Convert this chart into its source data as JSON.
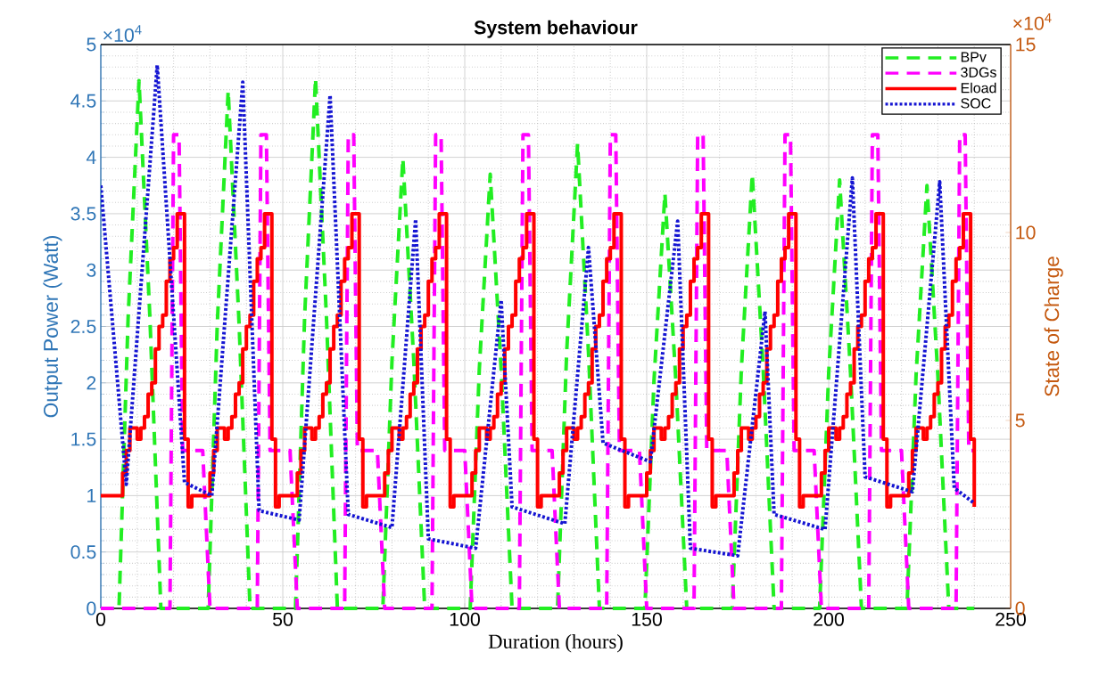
{
  "chart_data": {
    "type": "line",
    "title": "System behaviour",
    "xlabel": "Duration (hours)",
    "ylabel": "Output Power (Watt)",
    "y2label": "State of Charge",
    "annotations": [
      "×10$^{4}$",
      "×10$^{4}$"
    ],
    "xlim": [
      0,
      250
    ],
    "xticks": [
      0,
      50,
      100,
      150,
      200,
      250
    ],
    "ylim": [
      0,
      5
    ],
    "yticks": [
      0,
      0.5,
      1,
      1.5,
      2,
      2.5,
      3,
      3.5,
      4,
      4.5,
      5
    ],
    "y2lim": [
      0,
      15
    ],
    "y2ticks": [
      0,
      5,
      10,
      15
    ],
    "grid": true,
    "legend": "top right",
    "series": [
      {
        "name": "BPv",
        "type": "line",
        "line_style": "dashed",
        "color": "#22ee22",
        "x": [
          0,
          5,
          7.5,
          10.5,
          13.5,
          16.5,
          29.5,
          32,
          35,
          38,
          41,
          53.5,
          56,
          59,
          62,
          65,
          77.5,
          80,
          83,
          86,
          89,
          101.5,
          104,
          107,
          110,
          113,
          125.5,
          128,
          131,
          134,
          137,
          149.5,
          152,
          155,
          158,
          161,
          173.5,
          176,
          179,
          182,
          185,
          197.5,
          200,
          203,
          206,
          209,
          221.5,
          224,
          227,
          230,
          233,
          240
        ],
        "values": [
          0,
          0,
          2.57,
          4.68,
          2.57,
          0,
          0,
          2.52,
          4.59,
          2.52,
          0,
          0,
          2.58,
          4.7,
          2.58,
          0,
          0,
          2.19,
          3.99,
          2.19,
          0,
          0,
          2.12,
          3.85,
          2.12,
          0,
          0,
          2.27,
          4.12,
          2.27,
          0,
          0,
          2.02,
          3.68,
          2.02,
          0,
          0,
          2.12,
          3.85,
          2.12,
          0,
          0,
          2.09,
          3.8,
          2.09,
          0,
          0,
          2.06,
          3.75,
          2.06,
          0,
          0
        ]
      },
      {
        "name": "3DGs",
        "type": "line",
        "line_style": "dashed",
        "color": "#ff00ff",
        "x": [
          0,
          19,
          20,
          21.5,
          22.5,
          28,
          30,
          43,
          44,
          45.5,
          46.5,
          52,
          54,
          67,
          68,
          69.5,
          70.5,
          76,
          78,
          91,
          92,
          93.5,
          94.5,
          100,
          102,
          115,
          116,
          117.5,
          118.5,
          124,
          126,
          139,
          140,
          141.5,
          142.5,
          148,
          150,
          163,
          164,
          165.5,
          166.5,
          172,
          174,
          187,
          188,
          189.5,
          190.5,
          196,
          198,
          211,
          212,
          213.5,
          214.5,
          220,
          222,
          235,
          236,
          237.5,
          238.5,
          240
        ],
        "values": [
          0,
          0,
          4.2,
          4.2,
          1.4,
          1.4,
          0,
          0,
          4.2,
          4.2,
          1.4,
          1.4,
          0,
          0,
          4.2,
          4.2,
          1.4,
          1.4,
          0,
          0,
          4.2,
          4.2,
          1.4,
          1.4,
          0,
          0,
          4.2,
          4.2,
          1.4,
          1.4,
          0,
          0,
          4.2,
          4.2,
          1.4,
          1.4,
          0,
          0,
          4.2,
          4.2,
          1.4,
          1.4,
          0,
          0,
          4.2,
          4.2,
          1.4,
          1.4,
          0,
          0,
          4.2,
          4.2,
          1.4,
          1.4,
          0,
          0,
          4.2,
          4.2,
          1.4,
          1.4
        ]
      },
      {
        "name": "Eload",
        "type": "step",
        "line_style": "solid",
        "color": "#ff0000",
        "x": [
          0,
          6,
          7,
          8,
          10,
          11,
          12,
          13,
          14,
          15,
          16,
          17,
          18,
          19,
          20,
          21,
          23,
          24,
          25,
          30,
          31,
          32,
          34,
          35,
          36,
          37,
          38,
          39,
          40,
          41,
          42,
          43,
          44,
          45,
          47,
          48,
          49,
          54,
          55,
          56,
          58,
          59,
          60,
          61,
          62,
          63,
          64,
          65,
          66,
          67,
          68,
          69,
          71,
          72,
          73,
          78,
          79,
          80,
          82,
          83,
          84,
          85,
          86,
          87,
          88,
          89,
          90,
          91,
          92,
          93,
          95,
          96,
          97,
          102,
          103,
          104,
          106,
          107,
          108,
          109,
          110,
          111,
          112,
          113,
          114,
          115,
          116,
          117,
          119,
          120,
          121,
          126,
          127,
          128,
          130,
          131,
          132,
          133,
          134,
          135,
          136,
          137,
          138,
          139,
          140,
          141,
          143,
          144,
          145,
          150,
          151,
          152,
          154,
          155,
          156,
          157,
          158,
          159,
          160,
          161,
          162,
          163,
          164,
          165,
          167,
          168,
          169,
          174,
          175,
          176,
          178,
          179,
          180,
          181,
          182,
          183,
          184,
          185,
          186,
          187,
          188,
          189,
          191,
          192,
          193,
          198,
          199,
          200,
          202,
          203,
          204,
          205,
          206,
          207,
          208,
          209,
          210,
          211,
          212,
          213,
          215,
          216,
          217,
          222,
          223,
          224,
          226,
          227,
          228,
          229,
          230,
          231,
          232,
          233,
          234,
          235,
          236,
          237,
          239,
          240
        ],
        "values": [
          1,
          1.2,
          1.4,
          1.6,
          1.5,
          1.6,
          1.7,
          1.9,
          2,
          2.3,
          2.5,
          2.6,
          2.9,
          3.1,
          3.2,
          3.5,
          1.5,
          0.9,
          1,
          1.2,
          1.4,
          1.6,
          1.5,
          1.6,
          1.7,
          1.9,
          2,
          2.3,
          2.5,
          2.6,
          2.9,
          3.1,
          3.2,
          3.5,
          1.5,
          0.9,
          1,
          1.2,
          1.4,
          1.6,
          1.5,
          1.6,
          1.7,
          1.9,
          2,
          2.3,
          2.5,
          2.6,
          2.9,
          3.1,
          3.2,
          3.5,
          1.5,
          0.9,
          1,
          1.2,
          1.4,
          1.6,
          1.5,
          1.6,
          1.7,
          1.9,
          2,
          2.3,
          2.5,
          2.6,
          2.9,
          3.1,
          3.2,
          3.5,
          1.5,
          0.9,
          1,
          1.2,
          1.4,
          1.6,
          1.5,
          1.6,
          1.7,
          1.9,
          2,
          2.3,
          2.5,
          2.6,
          2.9,
          3.1,
          3.2,
          3.5,
          1.5,
          0.9,
          1,
          1.2,
          1.4,
          1.6,
          1.5,
          1.6,
          1.7,
          1.9,
          2,
          2.3,
          2.5,
          2.6,
          2.9,
          3.1,
          3.2,
          3.5,
          1.5,
          0.9,
          1,
          1.2,
          1.4,
          1.6,
          1.5,
          1.6,
          1.7,
          1.9,
          2,
          2.3,
          2.5,
          2.6,
          2.9,
          3.1,
          3.2,
          3.5,
          1.5,
          0.9,
          1,
          1.2,
          1.4,
          1.6,
          1.5,
          1.6,
          1.7,
          1.9,
          2,
          2.3,
          2.5,
          2.6,
          2.9,
          3.1,
          3.2,
          3.5,
          1.5,
          0.9,
          1,
          1.2,
          1.4,
          1.6,
          1.5,
          1.6,
          1.7,
          1.9,
          2,
          2.3,
          2.5,
          2.6,
          2.9,
          3.1,
          3.2,
          3.5,
          1.5,
          0.9,
          1,
          1.2,
          1.4,
          1.6,
          1.5,
          1.6,
          1.7,
          1.9,
          2,
          2.3,
          2.5,
          2.6,
          2.9,
          3.1,
          3.2,
          3.5,
          1.5,
          0.9
        ]
      },
      {
        "name": "SOC",
        "type": "line",
        "line_style": "dotted",
        "axis": "y2",
        "color": "#1414d2",
        "x": [
          0,
          7,
          15.5,
          23,
          30.5,
          39,
          43.5,
          54.5,
          63,
          68,
          80,
          86.5,
          90,
          103,
          110,
          113,
          127.5,
          134,
          138,
          151,
          158.5,
          162,
          175,
          182.5,
          185,
          199,
          206.5,
          210,
          223,
          230.5,
          234.5,
          240
        ],
        "values": [
          11.25,
          3.3,
          14.45,
          3.35,
          3,
          14,
          2.6,
          2.35,
          13.65,
          2.5,
          2.15,
          10.35,
          1.85,
          1.6,
          8.2,
          2.7,
          2.25,
          9.6,
          4.4,
          3.9,
          10.3,
          1.6,
          1.4,
          7.9,
          2.5,
          2.1,
          11.45,
          3.5,
          3.1,
          11.35,
          3.2,
          2.8
        ]
      }
    ]
  }
}
